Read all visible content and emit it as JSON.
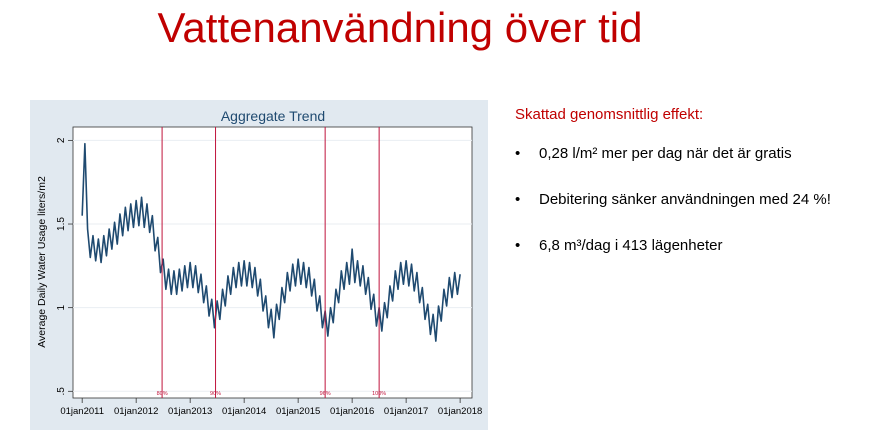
{
  "slide": {
    "title": "Vattenanvändning över tid",
    "heading": "Skattad genomsnittlig effekt:",
    "bullets": [
      "0,28 l/m² mer per dag när det är gratis",
      "Debitering sänker användningen med 24 %!",
      "6,8 m³/dag i 413 lägenheter"
    ]
  },
  "chart_data": {
    "type": "line",
    "title": "Aggregate Trend",
    "y_label": "Average Daily Water Usage liters/m2",
    "x": [
      2011,
      2011.05,
      2011.1,
      2011.15,
      2011.2,
      2011.25,
      2011.3,
      2011.35,
      2011.4,
      2011.45,
      2011.5,
      2011.55,
      2011.6,
      2011.65,
      2011.7,
      2011.75,
      2011.8,
      2011.85,
      2011.9,
      2011.95,
      2012,
      2012.05,
      2012.1,
      2012.15,
      2012.2,
      2012.25,
      2012.3,
      2012.35,
      2012.4,
      2012.45,
      2012.5,
      2012.55,
      2012.6,
      2012.65,
      2012.7,
      2012.75,
      2012.8,
      2012.85,
      2012.9,
      2012.95,
      2013,
      2013.05,
      2013.1,
      2013.15,
      2013.2,
      2013.25,
      2013.3,
      2013.35,
      2013.4,
      2013.45,
      2013.5,
      2013.55,
      2013.6,
      2013.65,
      2013.7,
      2013.75,
      2013.8,
      2013.85,
      2013.9,
      2013.95,
      2014,
      2014.05,
      2014.1,
      2014.15,
      2014.2,
      2014.25,
      2014.3,
      2014.35,
      2014.4,
      2014.45,
      2014.5,
      2014.55,
      2014.6,
      2014.65,
      2014.7,
      2014.75,
      2014.8,
      2014.85,
      2014.9,
      2014.95,
      2015,
      2015.05,
      2015.1,
      2015.15,
      2015.2,
      2015.25,
      2015.3,
      2015.35,
      2015.4,
      2015.45,
      2015.5,
      2015.55,
      2015.6,
      2015.65,
      2015.7,
      2015.75,
      2015.8,
      2015.85,
      2015.9,
      2015.95,
      2016,
      2016.05,
      2016.1,
      2016.15,
      2016.2,
      2016.25,
      2016.3,
      2016.35,
      2016.4,
      2016.45,
      2016.5,
      2016.55,
      2016.6,
      2016.65,
      2016.7,
      2016.75,
      2016.8,
      2016.85,
      2016.9,
      2016.95,
      2017,
      2017.05,
      2017.1,
      2017.15,
      2017.2,
      2017.25,
      2017.3,
      2017.35,
      2017.4,
      2017.45,
      2017.5,
      2017.55,
      2017.6,
      2017.65,
      2017.7,
      2017.75,
      2017.8,
      2017.85,
      2017.9,
      2017.95,
      2018
    ],
    "series": [
      {
        "color": "#1f4a70",
        "values": [
          1.55,
          1.98,
          1.47,
          1.3,
          1.43,
          1.28,
          1.41,
          1.27,
          1.43,
          1.31,
          1.47,
          1.35,
          1.51,
          1.38,
          1.56,
          1.43,
          1.6,
          1.46,
          1.62,
          1.48,
          1.64,
          1.49,
          1.66,
          1.48,
          1.62,
          1.45,
          1.55,
          1.34,
          1.42,
          1.21,
          1.29,
          1.11,
          1.23,
          1.08,
          1.22,
          1.08,
          1.23,
          1.1,
          1.25,
          1.12,
          1.27,
          1.12,
          1.25,
          1.09,
          1.2,
          1.03,
          1.13,
          0.95,
          1.05,
          0.88,
          1.04,
          0.93,
          1.11,
          1.01,
          1.19,
          1.08,
          1.24,
          1.12,
          1.27,
          1.13,
          1.28,
          1.13,
          1.27,
          1.12,
          1.24,
          1.07,
          1.17,
          0.98,
          1.07,
          0.88,
          0.99,
          0.82,
          1.02,
          0.93,
          1.12,
          1.03,
          1.21,
          1.1,
          1.26,
          1.13,
          1.29,
          1.14,
          1.27,
          1.12,
          1.24,
          1.07,
          1.17,
          0.98,
          1.07,
          0.88,
          0.98,
          0.83,
          1.0,
          0.91,
          1.11,
          1.03,
          1.22,
          1.11,
          1.27,
          1.14,
          1.35,
          1.15,
          1.28,
          1.13,
          1.25,
          1.08,
          1.18,
          0.99,
          1.08,
          0.89,
          1.0,
          0.86,
          1.03,
          0.94,
          1.13,
          1.04,
          1.22,
          1.11,
          1.27,
          1.14,
          1.28,
          1.13,
          1.26,
          1.1,
          1.21,
          1.03,
          1.12,
          0.93,
          1.02,
          0.84,
          0.96,
          0.8,
          1.01,
          0.92,
          1.11,
          1.01,
          1.18,
          1.06,
          1.21,
          1.08,
          1.2
        ]
      }
    ],
    "xlim": [
      2010.83,
      2018.22
    ],
    "xticks": [
      {
        "value": 2011,
        "label": "01jan2011"
      },
      {
        "value": 2012,
        "label": "01jan2012"
      },
      {
        "value": 2013,
        "label": "01jan2013"
      },
      {
        "value": 2014,
        "label": "01jan2014"
      },
      {
        "value": 2015,
        "label": "01jan2015"
      },
      {
        "value": 2016,
        "label": "01jan2016"
      },
      {
        "value": 2017,
        "label": "01jan2017"
      },
      {
        "value": 2018,
        "label": "01jan2018"
      }
    ],
    "ylim": [
      0.46,
      2.08
    ],
    "yticks": [
      {
        "value": 0.5,
        "label": ".5"
      },
      1,
      1.5,
      2
    ],
    "grid": true,
    "annotations": [
      {
        "x": 2012.48,
        "label": "80%",
        "color": "#c0143c"
      },
      {
        "x": 2013.47,
        "label": "90%",
        "color": "#c0143c"
      },
      {
        "x": 2015.5,
        "label": "96%",
        "color": "#c0143c"
      },
      {
        "x": 2016.5,
        "label": "100%",
        "color": "#c0143c"
      }
    ]
  }
}
